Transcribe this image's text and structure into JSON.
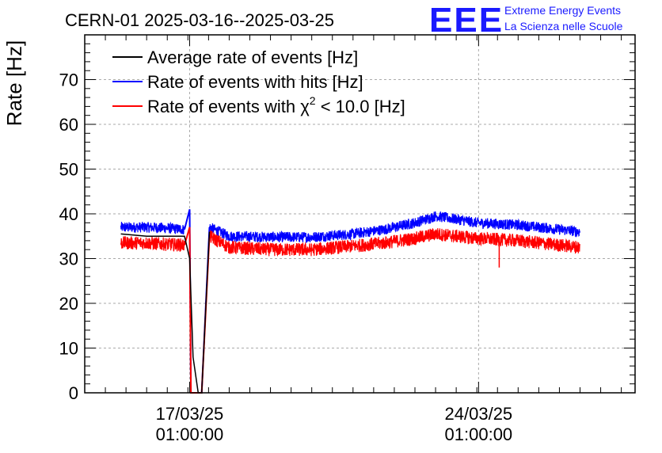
{
  "header": {
    "title": "CERN-01 2025-03-16--2025-03-25",
    "logo_text": "EEE",
    "logo_line1": "Extreme Energy Events",
    "logo_line2": "La Scienza nelle Scuole"
  },
  "chart_data": {
    "type": "line",
    "ylabel": "Rate [Hz]",
    "xlabel": "",
    "ylim": [
      0,
      80
    ],
    "yticks": [
      0,
      10,
      20,
      30,
      40,
      50,
      60,
      70
    ],
    "xlim": [
      "2025-03-14T12:00",
      "2025-03-27T20:00"
    ],
    "xticks": [
      {
        "date": "2025-03-17T01:00",
        "line1": "17/03/25",
        "line2": "01:00:00"
      },
      {
        "date": "2025-03-24T01:00",
        "line1": "24/03/25",
        "line2": "01:00:00"
      }
    ],
    "grid": true,
    "legend_position": "top-left",
    "legend_labels": {
      "avg": "Average rate of events [Hz]",
      "hits": "Rate of events with hits [Hz]",
      "chi_pre": "Rate of events with ",
      "chi_sym": "χ",
      "chi_sup": "2",
      "chi_post": " < 10.0 [Hz]"
    },
    "series": [
      {
        "name": "Average rate of events [Hz]",
        "color": "#000000",
        "points": [
          [
            "2025-03-15T09:00",
            35.5
          ],
          [
            "2025-03-16T00:00",
            35.0
          ],
          [
            "2025-03-16T12:00",
            35.0
          ],
          [
            "2025-03-16T22:00",
            35.0
          ],
          [
            "2025-03-17T01:00",
            30.0
          ],
          [
            "2025-03-17T03:00",
            8.0
          ],
          [
            "2025-03-17T06:00",
            0.0
          ],
          [
            "2025-03-17T08:00",
            0.0
          ],
          [
            "2025-03-17T12:30",
            36.0
          ]
        ]
      },
      {
        "name": "Rate of events with hits [Hz]",
        "color": "#0000ff",
        "band_half_width": 1.2,
        "points": [
          [
            "2025-03-15T09:00",
            37.0
          ],
          [
            "2025-03-16T00:00",
            37.0
          ],
          [
            "2025-03-16T12:00",
            36.8
          ],
          [
            "2025-03-16T22:00",
            36.5
          ],
          [
            "2025-03-17T01:00",
            41.0
          ],
          [
            "2025-03-17T01:45",
            0.0
          ],
          [
            "2025-03-17T08:00",
            0.0
          ],
          [
            "2025-03-17T12:30",
            37.0
          ],
          [
            "2025-03-18T00:00",
            35.0
          ],
          [
            "2025-03-19T00:00",
            34.8
          ],
          [
            "2025-03-20T00:00",
            34.8
          ],
          [
            "2025-03-21T00:00",
            35.5
          ],
          [
            "2025-03-21T18:00",
            36.5
          ],
          [
            "2025-03-22T12:00",
            38.0
          ],
          [
            "2025-03-23T00:00",
            39.5
          ],
          [
            "2025-03-23T12:00",
            38.8
          ],
          [
            "2025-03-24T00:00",
            38.0
          ],
          [
            "2025-03-25T00:00",
            37.5
          ],
          [
            "2025-03-26T00:00",
            36.5
          ],
          [
            "2025-03-26T12:00",
            36.0
          ]
        ]
      },
      {
        "name": "Rate of events with χ2 < 10.0 [Hz]",
        "color": "#ff0000",
        "band_half_width": 1.5,
        "points": [
          [
            "2025-03-15T09:00",
            33.5
          ],
          [
            "2025-03-16T00:00",
            33.5
          ],
          [
            "2025-03-16T12:00",
            33.2
          ],
          [
            "2025-03-16T22:00",
            33.0
          ],
          [
            "2025-03-17T01:00",
            37.0
          ],
          [
            "2025-03-17T01:45",
            0.0
          ],
          [
            "2025-03-17T08:00",
            0.0
          ],
          [
            "2025-03-17T12:30",
            35.0
          ],
          [
            "2025-03-18T00:00",
            32.5
          ],
          [
            "2025-03-19T00:00",
            32.0
          ],
          [
            "2025-03-20T00:00",
            32.0
          ],
          [
            "2025-03-21T00:00",
            32.8
          ],
          [
            "2025-03-21T18:00",
            33.5
          ],
          [
            "2025-03-22T12:00",
            34.5
          ],
          [
            "2025-03-23T00:00",
            35.5
          ],
          [
            "2025-03-23T12:00",
            35.0
          ],
          [
            "2025-03-24T00:00",
            34.5
          ],
          [
            "2025-03-25T00:00",
            34.0
          ],
          [
            "2025-03-26T00:00",
            33.0
          ],
          [
            "2025-03-26T12:00",
            32.5
          ]
        ]
      }
    ]
  }
}
